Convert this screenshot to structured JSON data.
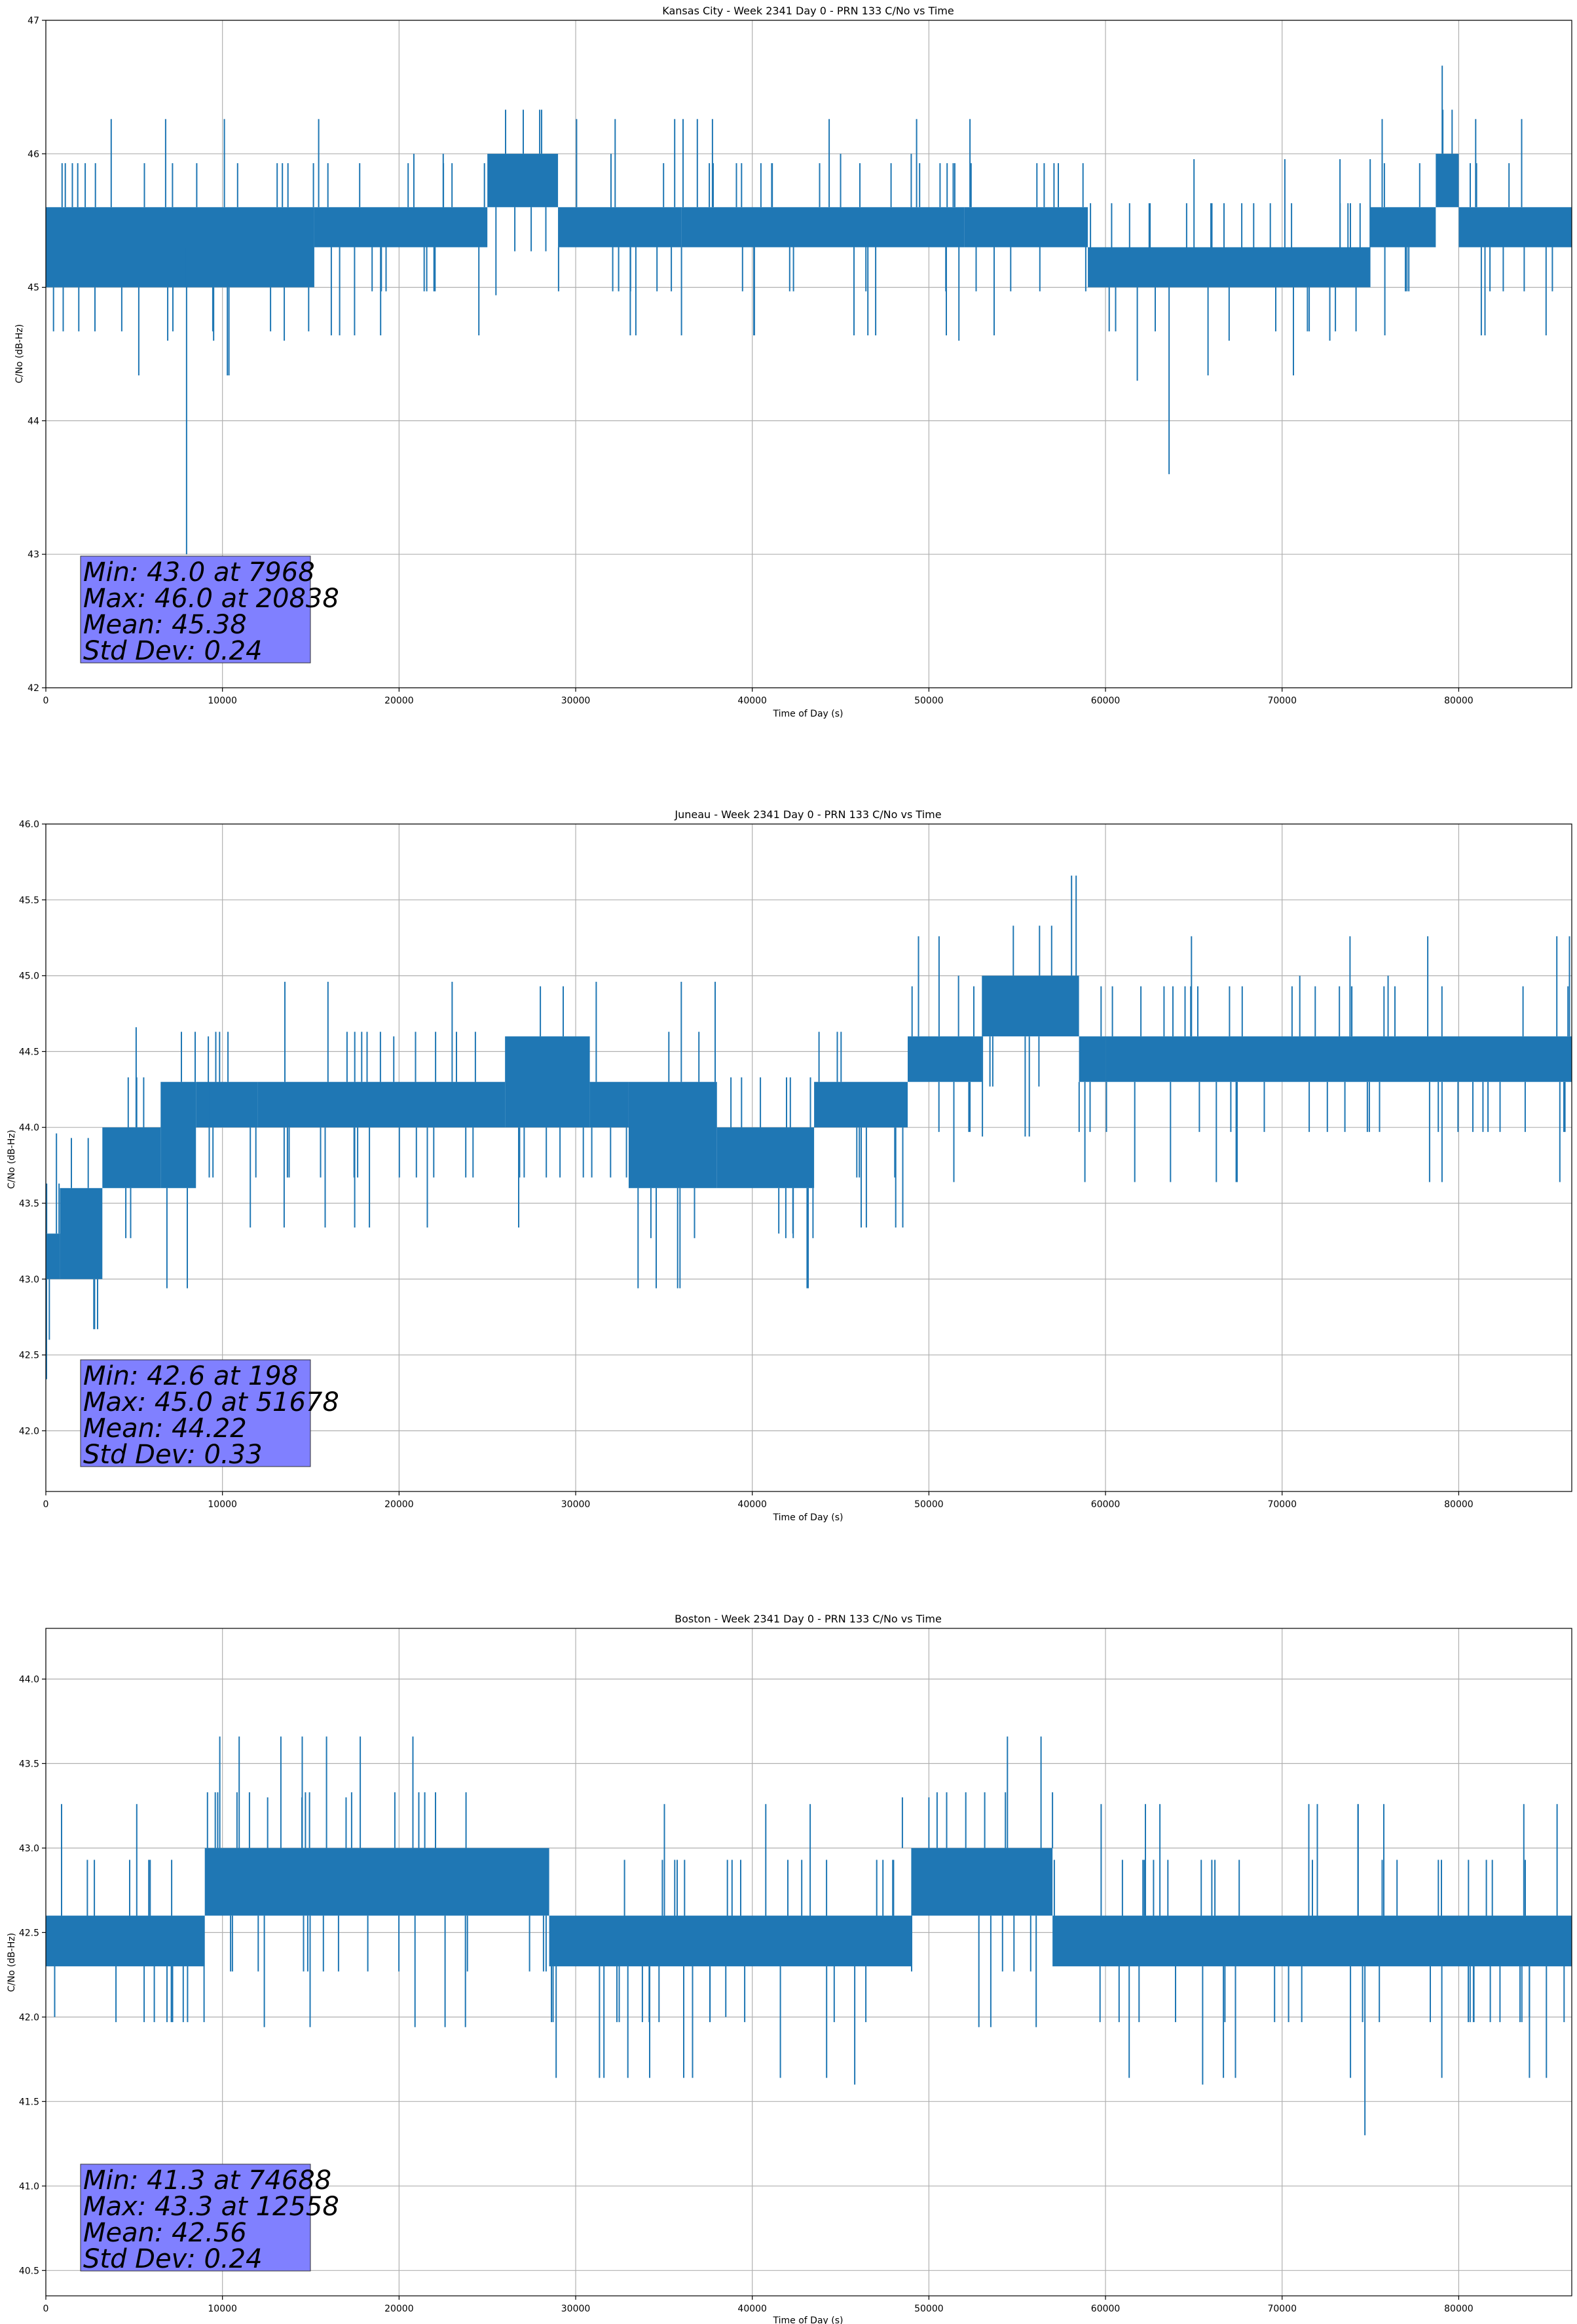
{
  "chart_data": [
    {
      "type": "line",
      "title": "Kansas City - Week 2341 Day 0 - PRN 133 C/No vs Time",
      "xlabel": "Time of Day (s)",
      "ylabel": "C/No (dB-Hz)",
      "xlim": [
        0,
        86400
      ],
      "ylim": [
        42,
        47
      ],
      "xticks": [
        0,
        10000,
        20000,
        30000,
        40000,
        50000,
        60000,
        70000,
        80000
      ],
      "yticks": [
        42,
        43,
        44,
        45,
        46,
        47
      ],
      "ytick_labels": [
        "42",
        "43",
        "44",
        "45",
        "46",
        "47"
      ],
      "grid": true,
      "series_color": "#1f77b4",
      "box_color": "#8080ff",
      "stats": [
        "Min: 43.0 at 7968",
        "Max: 46.0 at 20838",
        "Mean: 45.38",
        "Std Dev: 0.24"
      ],
      "bands": [
        {
          "x": [
            0,
            15200
          ],
          "y": [
            45.0,
            45.6
          ]
        },
        {
          "x": [
            15200,
            25000
          ],
          "y": [
            45.3,
            45.6
          ]
        },
        {
          "x": [
            25000,
            29000
          ],
          "y": [
            45.6,
            46.0
          ]
        },
        {
          "x": [
            29000,
            36000
          ],
          "y": [
            45.3,
            45.6
          ]
        },
        {
          "x": [
            36000,
            52000
          ],
          "y": [
            45.3,
            45.6
          ]
        },
        {
          "x": [
            52000,
            59000
          ],
          "y": [
            45.3,
            45.6
          ]
        },
        {
          "x": [
            59000,
            75000
          ],
          "y": [
            45.0,
            45.3
          ]
        },
        {
          "x": [
            75000,
            78700
          ],
          "y": [
            45.3,
            45.6
          ]
        },
        {
          "x": [
            78700,
            80000
          ],
          "y": [
            45.6,
            46.0
          ]
        },
        {
          "x": [
            80000,
            86400
          ],
          "y": [
            45.3,
            45.6
          ]
        }
      ],
      "spikes": [
        {
          "x": 7968,
          "y": [
            43.0,
            45.3
          ]
        },
        {
          "x": 6900,
          "y": [
            44.6,
            45.0
          ]
        },
        {
          "x": 9500,
          "y": [
            44.6,
            45.0
          ]
        },
        {
          "x": 13500,
          "y": [
            44.6,
            45.0
          ]
        },
        {
          "x": 20838,
          "y": [
            45.6,
            46.0
          ]
        },
        {
          "x": 22500,
          "y": [
            45.6,
            46.0
          ]
        },
        {
          "x": 32000,
          "y": [
            45.6,
            46.0
          ]
        },
        {
          "x": 45000,
          "y": [
            45.6,
            46.0
          ]
        },
        {
          "x": 49000,
          "y": [
            45.6,
            46.0
          ]
        },
        {
          "x": 51700,
          "y": [
            44.6,
            45.3
          ]
        },
        {
          "x": 61800,
          "y": [
            44.3,
            45.0
          ]
        },
        {
          "x": 63600,
          "y": [
            43.6,
            45.0
          ]
        },
        {
          "x": 67000,
          "y": [
            44.6,
            45.0
          ]
        },
        {
          "x": 72700,
          "y": [
            44.6,
            45.0
          ]
        }
      ]
    },
    {
      "type": "line",
      "title": "Juneau - Week 2341 Day 0 - PRN 133 C/No vs Time",
      "xlabel": "Time of Day (s)",
      "ylabel": "C/No (dB-Hz)",
      "xlim": [
        0,
        86400
      ],
      "ylim": [
        41.6,
        46.0
      ],
      "xticks": [
        0,
        10000,
        20000,
        30000,
        40000,
        50000,
        60000,
        70000,
        80000
      ],
      "yticks": [
        42.0,
        42.5,
        43.0,
        43.5,
        44.0,
        44.5,
        45.0,
        45.5,
        46.0
      ],
      "ytick_labels": [
        "42.0",
        "42.5",
        "43.0",
        "43.5",
        "44.0",
        "44.5",
        "45.0",
        "45.5",
        "46.0"
      ],
      "grid": true,
      "series_color": "#1f77b4",
      "box_color": "#8080ff",
      "stats": [
        "Min: 42.6 at 198",
        "Max: 45.0 at 51678",
        "Mean: 44.22",
        "Std Dev: 0.33"
      ],
      "bands": [
        {
          "x": [
            0,
            800
          ],
          "y": [
            43.0,
            43.3
          ]
        },
        {
          "x": [
            800,
            3200
          ],
          "y": [
            43.0,
            43.6
          ]
        },
        {
          "x": [
            3200,
            6500
          ],
          "y": [
            43.6,
            44.0
          ]
        },
        {
          "x": [
            6500,
            8500
          ],
          "y": [
            43.6,
            44.3
          ]
        },
        {
          "x": [
            8500,
            12000
          ],
          "y": [
            44.0,
            44.3
          ]
        },
        {
          "x": [
            12000,
            26000
          ],
          "y": [
            44.0,
            44.3
          ]
        },
        {
          "x": [
            26000,
            30800
          ],
          "y": [
            44.0,
            44.6
          ]
        },
        {
          "x": [
            30800,
            33000
          ],
          "y": [
            44.0,
            44.3
          ]
        },
        {
          "x": [
            33000,
            38000
          ],
          "y": [
            43.6,
            44.3
          ]
        },
        {
          "x": [
            38000,
            43500
          ],
          "y": [
            43.6,
            44.0
          ]
        },
        {
          "x": [
            43500,
            48800
          ],
          "y": [
            44.0,
            44.3
          ]
        },
        {
          "x": [
            48800,
            53000
          ],
          "y": [
            44.3,
            44.6
          ]
        },
        {
          "x": [
            53000,
            58500
          ],
          "y": [
            44.6,
            45.0
          ]
        },
        {
          "x": [
            58500,
            60000
          ],
          "y": [
            44.3,
            44.6
          ]
        },
        {
          "x": [
            60000,
            86400
          ],
          "y": [
            44.3,
            44.6
          ]
        }
      ],
      "spikes": [
        {
          "x": 198,
          "y": [
            42.6,
            43.0
          ]
        },
        {
          "x": 9200,
          "y": [
            44.0,
            44.6
          ]
        },
        {
          "x": 19700,
          "y": [
            44.3,
            44.6
          ]
        },
        {
          "x": 41500,
          "y": [
            43.3,
            43.6
          ]
        },
        {
          "x": 42300,
          "y": [
            43.3,
            43.6
          ]
        },
        {
          "x": 51678,
          "y": [
            44.6,
            45.0
          ]
        },
        {
          "x": 71000,
          "y": [
            44.6,
            45.0
          ]
        },
        {
          "x": 76000,
          "y": [
            44.6,
            45.0
          ]
        }
      ]
    },
    {
      "type": "line",
      "title": "Boston - Week 2341 Day 0 - PRN 133 C/No vs Time",
      "xlabel": "Time of Day (s)",
      "ylabel": "C/No (dB-Hz)",
      "xlim": [
        0,
        86400
      ],
      "ylim": [
        40.35,
        44.3
      ],
      "xticks": [
        0,
        10000,
        20000,
        30000,
        40000,
        50000,
        60000,
        70000,
        80000
      ],
      "yticks": [
        40.5,
        41.0,
        41.5,
        42.0,
        42.5,
        43.0,
        43.5,
        44.0
      ],
      "ytick_labels": [
        "40.5",
        "41.0",
        "41.5",
        "42.0",
        "42.5",
        "43.0",
        "43.5",
        "44.0"
      ],
      "grid": true,
      "series_color": "#1f77b4",
      "box_color": "#8080ff",
      "stats": [
        "Min: 41.3 at 74688",
        "Max: 43.3 at 12558",
        "Mean: 42.56",
        "Std Dev: 0.24"
      ],
      "bands": [
        {
          "x": [
            0,
            9000
          ],
          "y": [
            42.3,
            42.6
          ]
        },
        {
          "x": [
            9000,
            28500
          ],
          "y": [
            42.6,
            43.0
          ]
        },
        {
          "x": [
            28500,
            49000
          ],
          "y": [
            42.3,
            42.6
          ]
        },
        {
          "x": [
            49000,
            57000
          ],
          "y": [
            42.6,
            43.0
          ]
        },
        {
          "x": [
            57000,
            86400
          ],
          "y": [
            42.3,
            42.6
          ]
        }
      ],
      "spikes": [
        {
          "x": 12558,
          "y": [
            43.0,
            43.3
          ]
        },
        {
          "x": 14500,
          "y": [
            43.0,
            43.3
          ]
        },
        {
          "x": 17000,
          "y": [
            43.0,
            43.3
          ]
        },
        {
          "x": 500,
          "y": [
            42.0,
            42.3
          ]
        },
        {
          "x": 38500,
          "y": [
            42.0,
            42.3
          ]
        },
        {
          "x": 45800,
          "y": [
            41.6,
            42.3
          ]
        },
        {
          "x": 48500,
          "y": [
            43.0,
            43.3
          ]
        },
        {
          "x": 50000,
          "y": [
            43.0,
            43.3
          ]
        },
        {
          "x": 65500,
          "y": [
            41.6,
            42.3
          ]
        },
        {
          "x": 74688,
          "y": [
            41.3,
            42.3
          ]
        },
        {
          "x": 84000,
          "y": [
            42.0,
            42.3
          ]
        }
      ]
    }
  ]
}
